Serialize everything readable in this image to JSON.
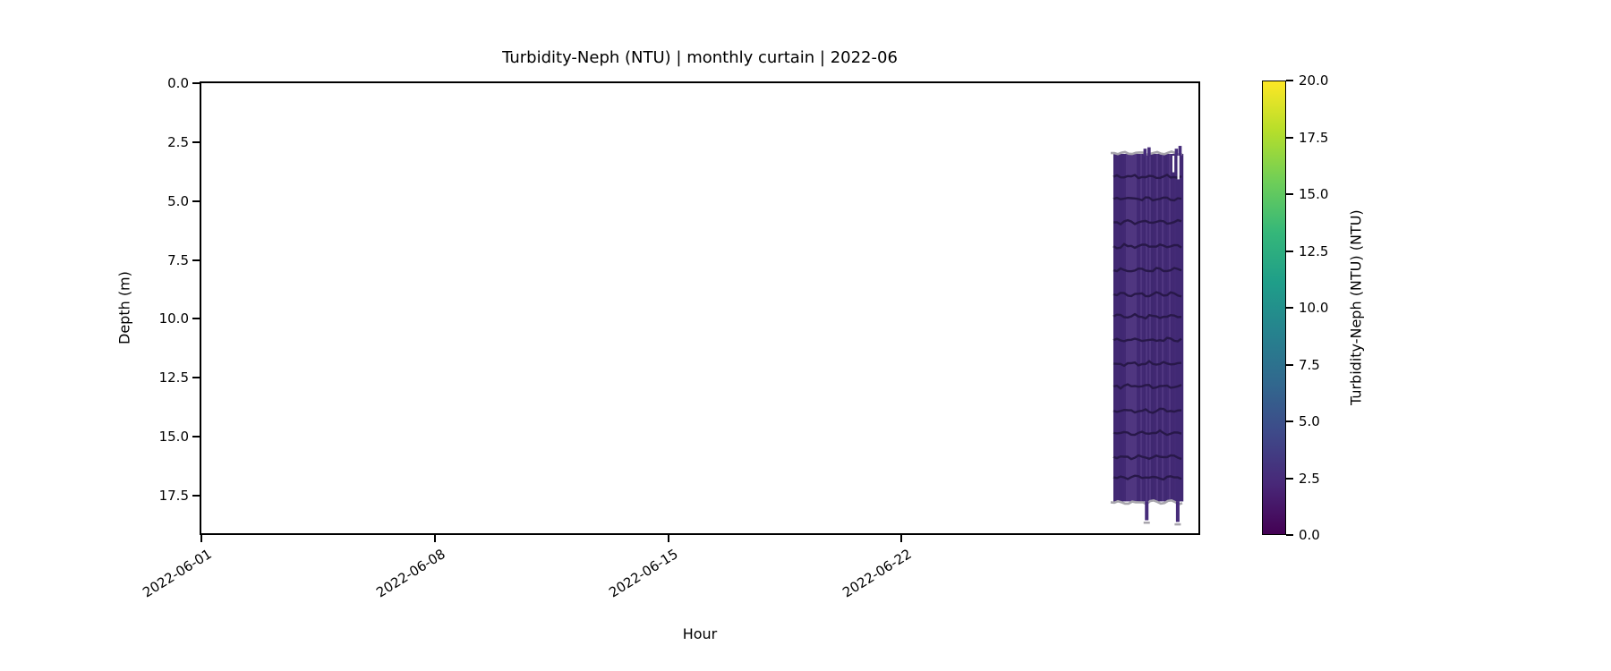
{
  "chart_data": {
    "type": "heatmap",
    "subtype": "time-depth curtain plot",
    "title": "Turbidity-Neph (NTU) | monthly curtain | 2022-06",
    "xlabel": "Hour",
    "ylabel": "Depth (m)",
    "x_axis": {
      "tick_labels": [
        "2022-06-01",
        "2022-06-08",
        "2022-06-15",
        "2022-06-22"
      ],
      "tick_days": [
        0,
        7,
        14,
        21
      ],
      "range_days": [
        0,
        29.9
      ],
      "tick_label_rotation_deg": 32
    },
    "y_axis": {
      "tick_labels": [
        "0.0",
        "2.5",
        "5.0",
        "7.5",
        "10.0",
        "12.5",
        "15.0",
        "17.5"
      ],
      "tick_values": [
        0,
        2.5,
        5,
        7.5,
        10,
        12.5,
        15,
        17.5
      ],
      "range": [
        0,
        19.1
      ],
      "inverted": true
    },
    "colorbar": {
      "label": "Turbidity-Neph (NTU) (NTU)",
      "tick_labels": [
        "0.0",
        "2.5",
        "5.0",
        "7.5",
        "10.0",
        "12.5",
        "15.0",
        "17.5",
        "20.0"
      ],
      "tick_values": [
        0,
        2.5,
        5,
        7.5,
        10,
        12.5,
        15,
        17.5,
        20
      ],
      "range": [
        0,
        20
      ],
      "colormap": "viridis",
      "gradient_stops": [
        "#440154",
        "#482878",
        "#3e4989",
        "#31688e",
        "#26828e",
        "#1f9e89",
        "#35b779",
        "#6ece58",
        "#b5de2b",
        "#fde725"
      ]
    },
    "curtain": {
      "description": "Data present only ~2022-06-28 through 2022-06-30; turbidity ~0-2.5 NTU (dark purple) over depths ~3.0-17.8 m; no data earlier in the month.",
      "day_start": 27.35,
      "day_end": 29.45,
      "depth_top": 3.0,
      "depth_bottom": 17.75,
      "fill_color": "#462c7a",
      "profile_line_color": "#281849",
      "profile_line_depths": [
        3.97,
        4.91,
        5.9,
        6.92,
        7.94,
        8.96,
        9.9,
        10.9,
        11.9,
        12.87,
        13.9,
        14.84,
        15.86,
        16.73
      ],
      "edge_line_color": "#a8a6ad",
      "top_spikes": [
        {
          "day": 28.3,
          "to_depth": 2.78
        },
        {
          "day": 28.42,
          "to_depth": 2.72
        },
        {
          "day": 29.24,
          "to_depth": 2.78
        },
        {
          "day": 29.35,
          "to_depth": 2.66
        }
      ],
      "surface_gaps": [
        {
          "day": 29.15,
          "to_depth": 3.78
        },
        {
          "day": 29.3,
          "to_depth": 4.08
        }
      ],
      "bottom_tails": [
        {
          "day": 28.35,
          "to_depth": 18.55
        },
        {
          "day": 29.28,
          "to_depth": 18.62
        }
      ]
    }
  }
}
